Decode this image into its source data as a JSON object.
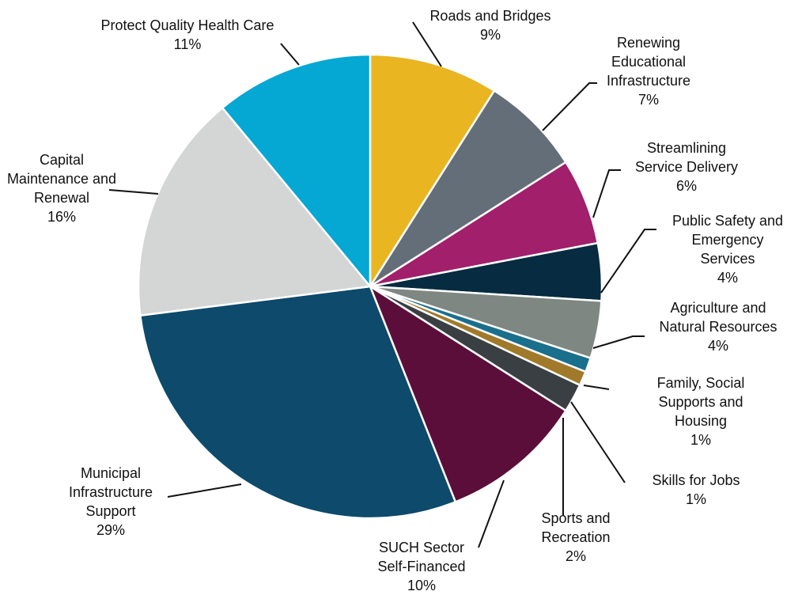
{
  "chart_data": {
    "type": "pie",
    "categories": [
      "Roads and Bridges",
      "Renewing Educational Infrastructure",
      "Streamlining Service Delivery",
      "Public Safety and Emergency Services",
      "Agriculture and Natural Resources",
      "Family, Social Supports and Housing",
      "Skills for Jobs",
      "Sports and Recreation",
      "SUCH Sector Self-Financed",
      "Municipal Infrastructure Support",
      "Capital Maintenance and Renewal",
      "Protect Quality Health Care"
    ],
    "values": [
      9,
      7,
      6,
      4,
      4,
      1,
      1,
      2,
      10,
      29,
      16,
      11
    ],
    "value_labels": [
      "9%",
      "7%",
      "6%",
      "4%",
      "4%",
      "1%",
      "1%",
      "2%",
      "10%",
      "29%",
      "16%",
      "11%"
    ],
    "colors": [
      "#e9b521",
      "#646e78",
      "#a11f6b",
      "#072b40",
      "#7f8783",
      "#1a6f8c",
      "#a07a2a",
      "#3a3f44",
      "#5c0e3a",
      "#0d4a6b",
      "#d4d5d5",
      "#05a7d3"
    ]
  }
}
